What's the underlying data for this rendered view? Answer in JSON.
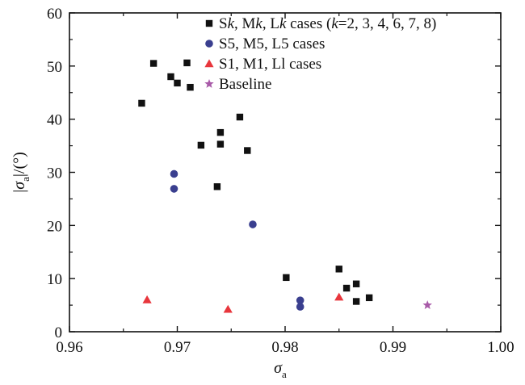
{
  "chart_data": {
    "type": "scatter",
    "title": "",
    "xlabel": "σ",
    "xlabel_sub": "a",
    "ylabel_parts": [
      "|",
      "σ",
      "a",
      "|/(°)"
    ],
    "xlim": [
      0.96,
      1.0
    ],
    "ylim": [
      0,
      60
    ],
    "xticks": [
      0.96,
      0.97,
      0.98,
      0.99,
      1.0
    ],
    "xtick_labels": [
      "0.96",
      "0.97",
      "0.98",
      "0.99",
      "1.00"
    ],
    "yticks": [
      0,
      10,
      20,
      30,
      40,
      50,
      60
    ],
    "ytick_labels": [
      "0",
      "10",
      "20",
      "30",
      "40",
      "50",
      "60"
    ],
    "grid": false,
    "legend_position": "top-right",
    "series": [
      {
        "name": "Sk, Mk, Lk cases (k=2, 3, 4, 6, 7, 8)",
        "name_parts": [
          "S",
          "k",
          ", M",
          "k",
          ", L",
          "k",
          " cases (",
          "k",
          "=2, 3, 4, 6, 7, 8)"
        ],
        "marker": "square",
        "color": "#111111",
        "points": [
          [
            0.9667,
            43.0
          ],
          [
            0.9678,
            50.5
          ],
          [
            0.9694,
            48.0
          ],
          [
            0.97,
            46.8
          ],
          [
            0.9709,
            50.6
          ],
          [
            0.9712,
            46.0
          ],
          [
            0.9722,
            35.1
          ],
          [
            0.9737,
            27.3
          ],
          [
            0.974,
            37.5
          ],
          [
            0.974,
            35.3
          ],
          [
            0.9758,
            40.4
          ],
          [
            0.9765,
            34.1
          ],
          [
            0.9801,
            10.2
          ],
          [
            0.985,
            11.8
          ],
          [
            0.9857,
            8.2
          ],
          [
            0.9866,
            9.0
          ],
          [
            0.9866,
            5.7
          ],
          [
            0.9878,
            6.4
          ]
        ]
      },
      {
        "name": "S5, M5, L5 cases",
        "marker": "circle",
        "color": "#3a3f8f",
        "points": [
          [
            0.9697,
            29.7
          ],
          [
            0.9697,
            26.9
          ],
          [
            0.977,
            20.2
          ],
          [
            0.9814,
            5.9
          ],
          [
            0.9814,
            4.7
          ]
        ]
      },
      {
        "name": "S1, M1, Ll cases",
        "marker": "triangle",
        "color": "#e8363c",
        "points": [
          [
            0.9672,
            6.0
          ],
          [
            0.9747,
            4.2
          ],
          [
            0.985,
            6.5
          ]
        ]
      },
      {
        "name": "Baseline",
        "marker": "star",
        "color": "#a85aa8",
        "points": [
          [
            0.9932,
            5.0
          ]
        ]
      }
    ]
  }
}
